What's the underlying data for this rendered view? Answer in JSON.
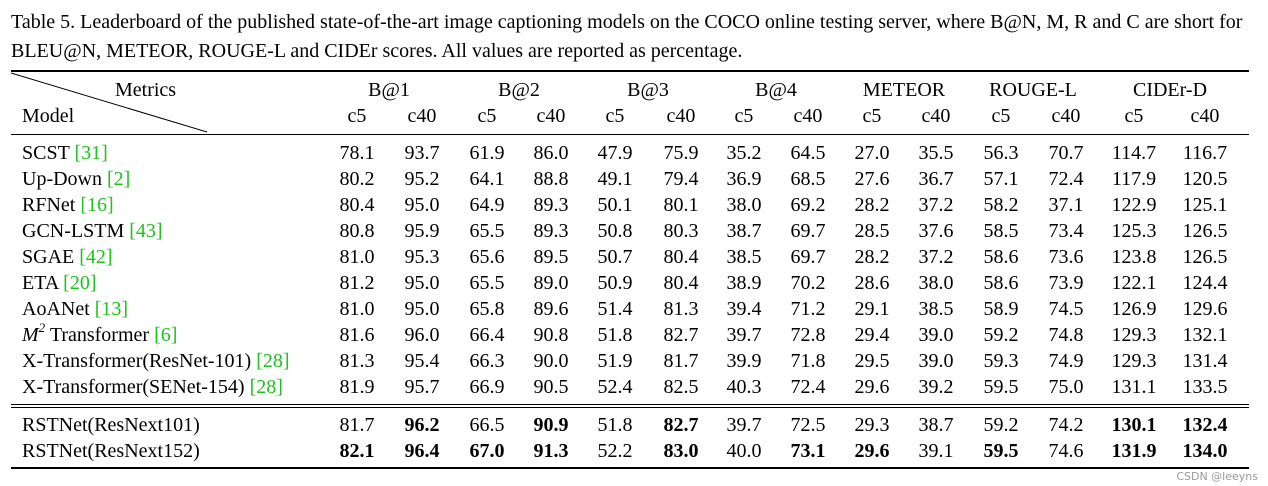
{
  "caption": "Table 5. Leaderboard of the published state-of-the-art image captioning models on the COCO online testing server, where B@N, M, R and C are short for BLEU@N, METEOR, ROUGE-L and CIDEr scores. All values are reported as percentage.",
  "header": {
    "metrics_label": "Metrics",
    "model_label": "Model",
    "metric_groups": [
      "B@1",
      "B@2",
      "B@3",
      "B@4",
      "METEOR",
      "ROUGE-L",
      "CIDEr-D"
    ],
    "sub_columns": [
      "c5",
      "c40"
    ]
  },
  "rows": [
    {
      "name": "SCST",
      "cite": "[31]",
      "values": [
        "78.1",
        "93.7",
        "61.9",
        "86.0",
        "47.9",
        "75.9",
        "35.2",
        "64.5",
        "27.0",
        "35.5",
        "56.3",
        "70.7",
        "114.7",
        "116.7"
      ],
      "bold": []
    },
    {
      "name": "Up-Down",
      "cite": "[2]",
      "values": [
        "80.2",
        "95.2",
        "64.1",
        "88.8",
        "49.1",
        "79.4",
        "36.9",
        "68.5",
        "27.6",
        "36.7",
        "57.1",
        "72.4",
        "117.9",
        "120.5"
      ],
      "bold": []
    },
    {
      "name": "RFNet",
      "cite": "[16]",
      "values": [
        "80.4",
        "95.0",
        "64.9",
        "89.3",
        "50.1",
        "80.1",
        "38.0",
        "69.2",
        "28.2",
        "37.2",
        "58.2",
        "37.1",
        "122.9",
        "125.1"
      ],
      "bold": []
    },
    {
      "name": "GCN-LSTM",
      "cite": "[43]",
      "values": [
        "80.8",
        "95.9",
        "65.5",
        "89.3",
        "50.8",
        "80.3",
        "38.7",
        "69.7",
        "28.5",
        "37.6",
        "58.5",
        "73.4",
        "125.3",
        "126.5"
      ],
      "bold": []
    },
    {
      "name": "SGAE",
      "cite": "[42]",
      "values": [
        "81.0",
        "95.3",
        "65.6",
        "89.5",
        "50.7",
        "80.4",
        "38.5",
        "69.7",
        "28.2",
        "37.2",
        "58.6",
        "73.6",
        "123.8",
        "126.5"
      ],
      "bold": []
    },
    {
      "name": "ETA",
      "cite": "[20]",
      "values": [
        "81.2",
        "95.0",
        "65.5",
        "89.0",
        "50.9",
        "80.4",
        "38.9",
        "70.2",
        "28.6",
        "38.0",
        "58.6",
        "73.9",
        "122.1",
        "124.4"
      ],
      "bold": []
    },
    {
      "name": "AoANet",
      "cite": "[13]",
      "values": [
        "81.0",
        "95.0",
        "65.8",
        "89.6",
        "51.4",
        "81.3",
        "39.4",
        "71.2",
        "29.1",
        "38.5",
        "58.9",
        "74.5",
        "126.9",
        "129.6"
      ],
      "bold": []
    },
    {
      "name": "Transformer",
      "math_prefix": "M",
      "math_sup": "2",
      "cite": "[6]",
      "values": [
        "81.6",
        "96.0",
        "66.4",
        "90.8",
        "51.8",
        "82.7",
        "39.7",
        "72.8",
        "29.4",
        "39.0",
        "59.2",
        "74.8",
        "129.3",
        "132.1"
      ],
      "bold": []
    },
    {
      "name": "X-Transformer(ResNet-101)",
      "cite": "[28]",
      "values": [
        "81.3",
        "95.4",
        "66.3",
        "90.0",
        "51.9",
        "81.7",
        "39.9",
        "71.8",
        "29.5",
        "39.0",
        "59.3",
        "74.9",
        "129.3",
        "131.4"
      ],
      "bold": []
    },
    {
      "name": "X-Transformer(SENet-154)",
      "cite": "[28]",
      "values": [
        "81.9",
        "95.7",
        "66.9",
        "90.5",
        "52.4",
        "82.5",
        "40.3",
        "72.4",
        "29.6",
        "39.2",
        "59.5",
        "75.0",
        "131.1",
        "133.5"
      ],
      "bold": []
    },
    {
      "name": "RSTNet(ResNext101)",
      "cite": "",
      "values": [
        "81.7",
        "96.2",
        "66.5",
        "90.9",
        "51.8",
        "82.7",
        "39.7",
        "72.5",
        "29.3",
        "38.7",
        "59.2",
        "74.2",
        "130.1",
        "132.4"
      ],
      "bold": [
        1,
        3,
        5,
        12,
        13
      ]
    },
    {
      "name": "RSTNet(ResNext152)",
      "cite": "",
      "values": [
        "82.1",
        "96.4",
        "67.0",
        "91.3",
        "52.2",
        "83.0",
        "40.0",
        "73.1",
        "29.6",
        "39.1",
        "59.5",
        "74.6",
        "131.9",
        "134.0"
      ],
      "bold": [
        0,
        1,
        2,
        3,
        5,
        7,
        8,
        10,
        12,
        13
      ]
    }
  ],
  "watermark": "CSDN @leeyns"
}
